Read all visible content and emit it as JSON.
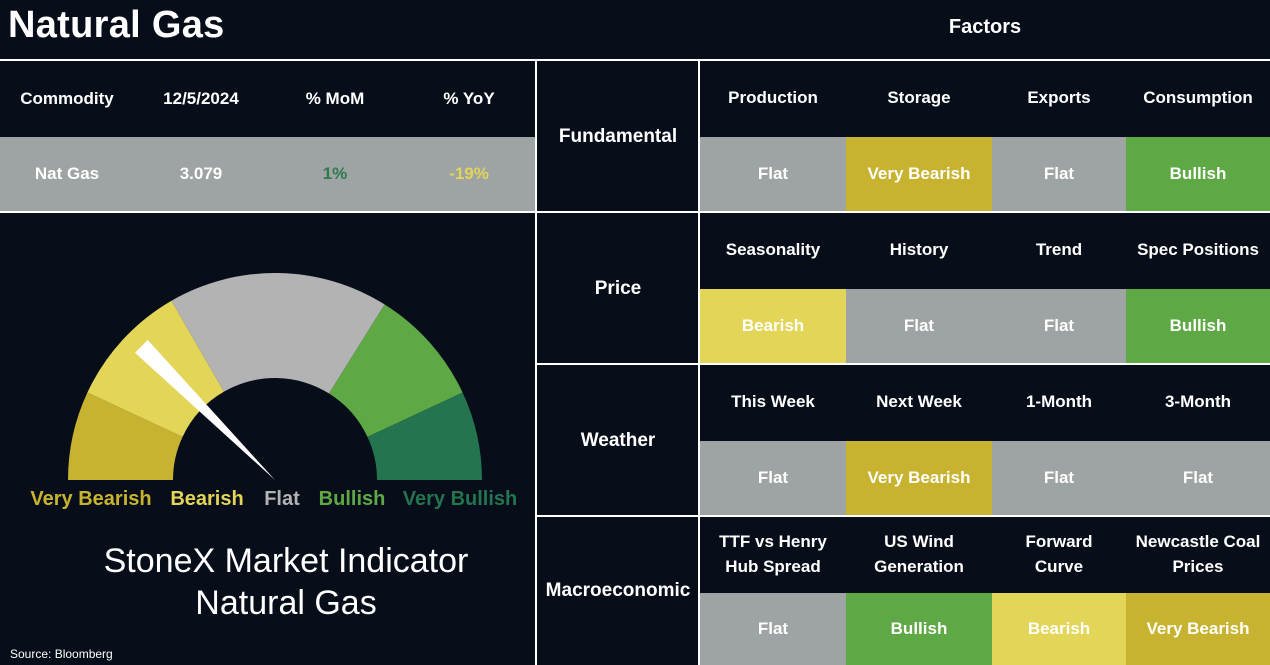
{
  "header": {
    "title": "Natural Gas",
    "factors_title": "Factors"
  },
  "commodity_table": {
    "headers": [
      "Commodity",
      "12/5/2024",
      "% MoM",
      "% YoY"
    ],
    "row": {
      "commodity": "Nat Gas",
      "price": "3.079",
      "mom": "1%",
      "yoy": "-19%"
    }
  },
  "gauge": {
    "labels": [
      "Very Bearish",
      "Bearish",
      "Flat",
      "Bullish",
      "Very Bullish"
    ],
    "needle_level": "Bearish",
    "title_line1": "StoneX Market Indicator",
    "title_line2": "Natural Gas"
  },
  "source": "Source: Bloomberg",
  "factors": [
    {
      "category": "Fundamental",
      "items": [
        {
          "name": "Production",
          "rating": "Flat"
        },
        {
          "name": "Storage",
          "rating": "Very Bearish"
        },
        {
          "name": "Exports",
          "rating": "Flat"
        },
        {
          "name": "Consumption",
          "rating": "Bullish"
        }
      ]
    },
    {
      "category": "Price",
      "items": [
        {
          "name": "Seasonality",
          "rating": "Bearish"
        },
        {
          "name": "History",
          "rating": "Flat"
        },
        {
          "name": "Trend",
          "rating": "Flat"
        },
        {
          "name": "Spec Positions",
          "rating": "Bullish"
        }
      ]
    },
    {
      "category": "Weather",
      "items": [
        {
          "name": "This Week",
          "rating": "Flat"
        },
        {
          "name": "Next Week",
          "rating": "Very Bearish"
        },
        {
          "name": "1-Month",
          "rating": "Flat"
        },
        {
          "name": "3-Month",
          "rating": "Flat"
        }
      ]
    },
    {
      "category": "Macroeconomic",
      "items": [
        {
          "name": "TTF vs Henry Hub Spread",
          "rating": "Flat"
        },
        {
          "name": "US Wind Generation",
          "rating": "Bullish"
        },
        {
          "name": "Forward Curve",
          "rating": "Bearish"
        },
        {
          "name": "Newcastle Coal Prices",
          "rating": "Very Bearish"
        }
      ]
    }
  ],
  "colors": {
    "Very Bearish": "#c8b331",
    "Bearish": "#e3d558",
    "Flat": "#9ea3a3",
    "Bullish": "#5ea845",
    "Very Bullish": "#23744f",
    "gauge_flat": "#b3b3b3",
    "mom_text": "#2e7a4e",
    "yoy_text": "#e3d558"
  },
  "chart_data": {
    "type": "gauge",
    "categories": [
      "Very Bearish",
      "Bearish",
      "Flat",
      "Bullish",
      "Very Bullish"
    ],
    "value": "Bearish",
    "title": "StoneX Market Indicator Natural Gas"
  }
}
